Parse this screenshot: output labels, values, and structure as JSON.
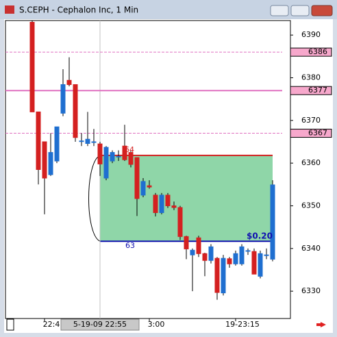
{
  "chart_data": {
    "type": "candlestick",
    "title": "S.CEPH - Cephalon Inc, 1 Min",
    "open": [
      6393,
      6372,
      6365,
      6357.3,
      6360.5,
      6371.7,
      6379.4,
      6378.4,
      6365.2,
      6364.6,
      6365,
      6364.5,
      6356.5,
      6360.5,
      6361.6,
      6364,
      6362.5,
      6361.3,
      6352.5,
      6354.7,
      6352.5,
      6348.4,
      6352.5,
      6350,
      6349.6,
      6342.8,
      6338.5,
      6342.5,
      6338.8,
      6337.2,
      6337.7,
      6329.6,
      6337.6,
      6336.4,
      6336.4,
      6339.5,
      6339.3,
      6333.5,
      6338.5,
      6337.5
    ],
    "high": [
      6394,
      6372,
      6365,
      6367,
      6368.5,
      6382,
      6384.8,
      6378.4,
      6367,
      6372,
      6368,
      6365,
      6364,
      6363,
      6363,
      6369,
      6363,
      6361.3,
      6356.5,
      6356,
      6353,
      6353,
      6353,
      6351,
      6350,
      6343,
      6340,
      6343,
      6339,
      6341,
      6338,
      6338.5,
      6338,
      6339.5,
      6341,
      6340,
      6340,
      6339.5,
      6340,
      6356
    ],
    "low": [
      6372,
      6355,
      6348,
      6357,
      6360,
      6371,
      6378,
      6365,
      6364,
      6364,
      6364,
      6357,
      6356,
      6360,
      6360.5,
      6360.5,
      6359,
      6347.6,
      6352,
      6354,
      6347.5,
      6348,
      6349.5,
      6349,
      6342,
      6337.5,
      6330,
      6338,
      6333.5,
      6336.5,
      6328,
      6329,
      6335.5,
      6336,
      6336,
      6338.5,
      6334,
      6333,
      6337.5,
      6337
    ],
    "close": [
      6372,
      6358.5,
      6356.5,
      6362.5,
      6368.5,
      6378.4,
      6378.4,
      6366,
      6365.2,
      6365.6,
      6365,
      6359.8,
      6363.7,
      6362.5,
      6361.6,
      6360.8,
      6359.7,
      6351.7,
      6355.7,
      6354.4,
      6348.4,
      6352.5,
      6350,
      6349.6,
      6342.8,
      6339.9,
      6339.6,
      6338.8,
      6337.2,
      6340.4,
      6329.7,
      6337.7,
      6336.4,
      6338.8,
      6340.4,
      6339.5,
      6334,
      6338.8,
      6338.5,
      6354.9
    ],
    "up_color": "#1f6fd0",
    "down_color": "#d42020",
    "ylim": [
      6323.6,
      6393.4
    ],
    "yticks": [
      6330,
      6340,
      6350,
      6360,
      6370,
      6380,
      6390
    ],
    "xticks": [
      {
        "value": 2,
        "label": "22:4"
      },
      {
        "value": 19,
        "label": "3:00"
      },
      {
        "value": 33,
        "label": "19-23:15"
      }
    ],
    "cursor": {
      "value": 11,
      "label": "5-19-09 22:55"
    },
    "levels": [
      {
        "value": 6386,
        "color": "#e070c0",
        "dashed": true
      },
      {
        "value": 6377,
        "color": "#e070c0",
        "dashed": false
      },
      {
        "value": 6367,
        "color": "#e070c0",
        "dashed": true
      }
    ],
    "trade": {
      "start": 11,
      "end": 39,
      "entry": 6361.8,
      "exit": 6341.7,
      "entry_label": "64",
      "exit_label": "63",
      "profit_label": "$0.20",
      "color": "#8fd6a8"
    }
  }
}
